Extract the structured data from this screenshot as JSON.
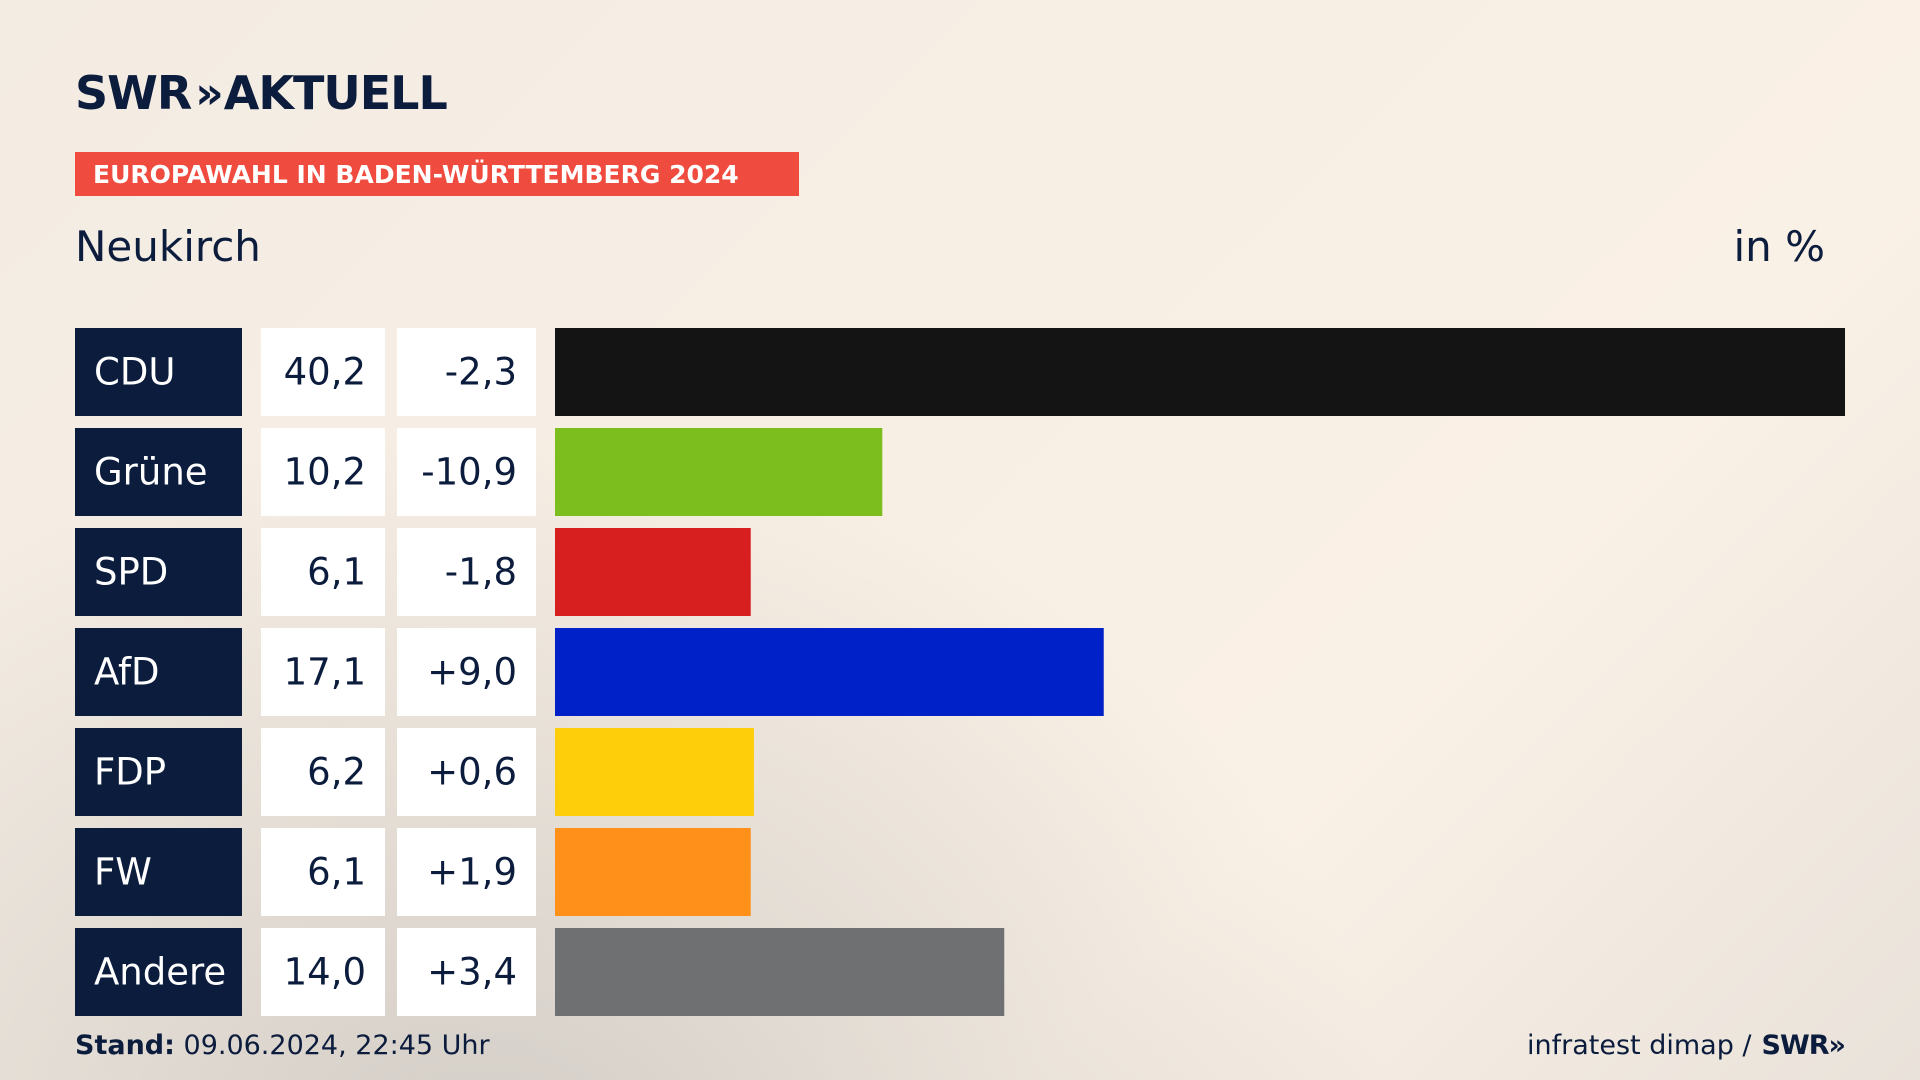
{
  "header": {
    "logo_brand": "SWR",
    "logo_arrows": "»",
    "logo_text": "AKTUELL",
    "banner": "EUROPAWAHL IN BADEN-WÜRTTEMBERG 2024",
    "region": "Neukirch",
    "unit": "in %"
  },
  "footer": {
    "stand_label": "Stand:",
    "stand_value": "09.06.2024, 22:45 Uhr",
    "source": "infratest dimap /",
    "source_logo": "SWR»"
  },
  "chart_data": {
    "type": "bar",
    "orientation": "horizontal",
    "categories": [
      "CDU",
      "Grüne",
      "SPD",
      "AfD",
      "FDP",
      "FW",
      "Andere"
    ],
    "values": [
      40.2,
      10.2,
      6.1,
      17.1,
      6.2,
      6.1,
      14.0
    ],
    "value_labels": [
      "40,2",
      "10,2",
      "6,1",
      "17,1",
      "6,2",
      "6,1",
      "14,0"
    ],
    "change_labels": [
      "-2,3",
      "-10,9",
      "-1,8",
      "+9,0",
      "+0,6",
      "+1,9",
      "+3,4"
    ],
    "changes": [
      -2.3,
      -10.9,
      -1.8,
      9.0,
      0.6,
      1.9,
      3.4
    ],
    "colors": [
      "#141414",
      "#7bbe1e",
      "#d81f1f",
      "#0020c8",
      "#ffce0a",
      "#ff901a",
      "#6f7072"
    ],
    "xlim": [
      0,
      40.2
    ],
    "grid": false
  }
}
